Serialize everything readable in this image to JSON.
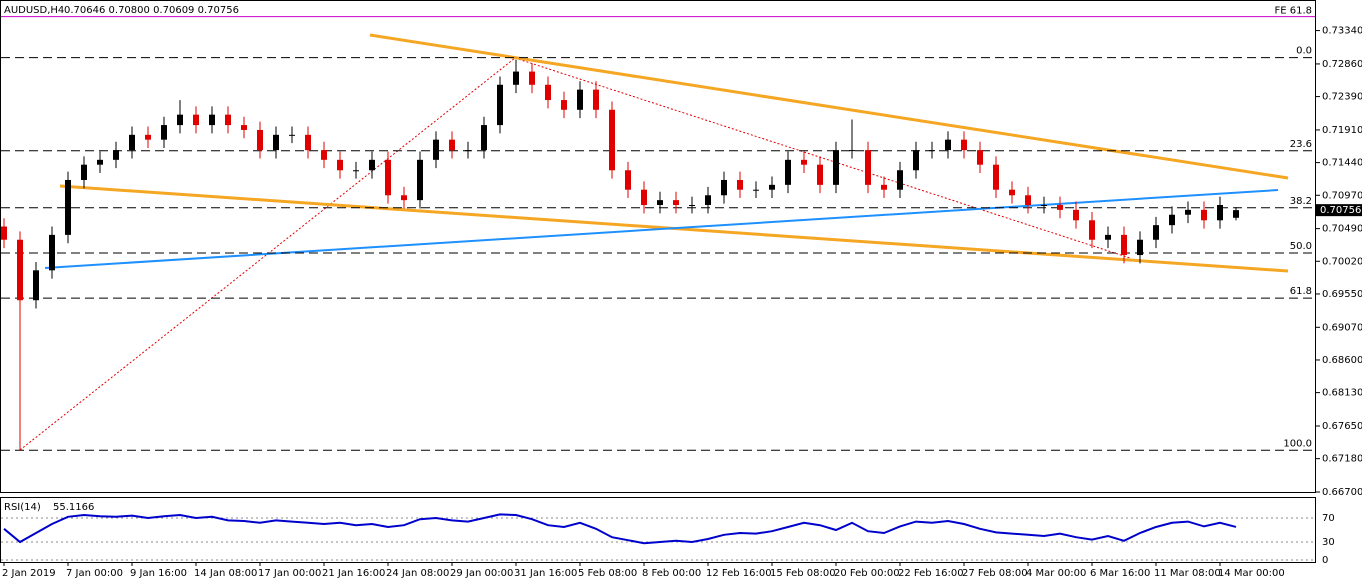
{
  "chart_data": [
    {
      "type": "candlestick",
      "title": "AUDUSD,H4",
      "subtitle": "0.70646 0.70800 0.70609 0.70756",
      "categories": [
        "2 Jan 2019",
        null,
        null,
        null,
        "7 Jan 00:00",
        null,
        null,
        null,
        "9 Jan 16:00",
        null,
        null,
        null,
        "14 Jan 08:00",
        null,
        null,
        null,
        "17 Jan 00:00",
        null,
        null,
        null,
        "21 Jan 16:00",
        null,
        null,
        null,
        "24 Jan 08:00",
        null,
        null,
        null,
        "29 Jan 00:00",
        null,
        null,
        null,
        "31 Jan 16:00",
        null,
        null,
        null,
        "5 Feb 08:00",
        null,
        null,
        null,
        "8 Feb 00:00",
        null,
        null,
        null,
        "12 Feb 16:00",
        null,
        null,
        null,
        "15 Feb 08:00",
        null,
        null,
        null,
        "20 Feb 00:00",
        null,
        null,
        null,
        "22 Feb 16:00",
        null,
        null,
        null,
        "27 Feb 08:00",
        null,
        null,
        null,
        "4 Mar 00:00",
        null,
        null,
        null,
        "6 Mar 16:00",
        null,
        null,
        null,
        "11 Mar 08:00",
        null,
        null,
        null,
        "14 Mar 00:00",
        null
      ],
      "open": [
        0.7052,
        0.7033,
        0.6946,
        0.6989,
        0.704,
        0.7119,
        0.7141,
        0.7148,
        0.7162,
        0.7184,
        0.7177,
        0.7198,
        0.7213,
        0.7198,
        0.7213,
        0.7198,
        0.7191,
        0.7162,
        0.7184,
        0.7184,
        0.7162,
        0.7148,
        0.7133,
        0.7133,
        0.7148,
        0.7097,
        0.709,
        0.7148,
        0.7177,
        0.7162,
        0.7162,
        0.7198,
        0.7256,
        0.7275,
        0.7256,
        0.7234,
        0.722,
        0.7249,
        0.722,
        0.7133,
        0.7105,
        0.7083,
        0.709,
        0.7083,
        0.7083,
        0.7097,
        0.7119,
        0.7105,
        0.7105,
        0.7112,
        0.7148,
        0.7141,
        0.7112,
        0.7162,
        0.7162,
        0.7112,
        0.7105,
        0.7133,
        0.7162,
        0.7162,
        0.7177,
        0.7162,
        0.7141,
        0.7105,
        0.7097,
        0.7083,
        0.7083,
        0.7076,
        0.7061,
        0.7033,
        0.704,
        0.7011,
        0.7033,
        0.7054,
        0.7069,
        0.7076,
        0.7061,
        0.70646
      ],
      "high": [
        0.7064,
        0.7045,
        0.7001,
        0.7052,
        0.7131,
        0.7153,
        0.716,
        0.7174,
        0.7196,
        0.7196,
        0.721,
        0.7234,
        0.7225,
        0.7225,
        0.7225,
        0.721,
        0.7203,
        0.7196,
        0.7196,
        0.7196,
        0.7174,
        0.716,
        0.7145,
        0.716,
        0.716,
        0.7109,
        0.716,
        0.7189,
        0.7189,
        0.7174,
        0.721,
        0.7268,
        0.7292,
        0.7287,
        0.7268,
        0.7246,
        0.7261,
        0.7261,
        0.7232,
        0.7145,
        0.7117,
        0.7102,
        0.7102,
        0.7095,
        0.7109,
        0.7131,
        0.7131,
        0.7117,
        0.7124,
        0.716,
        0.716,
        0.7153,
        0.7174,
        0.7206,
        0.7174,
        0.7124,
        0.7145,
        0.7174,
        0.7174,
        0.7189,
        0.7189,
        0.7174,
        0.7153,
        0.7117,
        0.7109,
        0.7095,
        0.7095,
        0.7088,
        0.7073,
        0.7052,
        0.7052,
        0.7045,
        0.7066,
        0.7081,
        0.7088,
        0.7088,
        0.7095,
        0.708
      ],
      "low": [
        0.7021,
        0.673,
        0.6934,
        0.6977,
        0.7028,
        0.7107,
        0.7129,
        0.7136,
        0.715,
        0.7165,
        0.7165,
        0.7186,
        0.7186,
        0.7186,
        0.7186,
        0.7179,
        0.715,
        0.715,
        0.7172,
        0.715,
        0.7136,
        0.7121,
        0.7121,
        0.7121,
        0.7085,
        0.7078,
        0.7078,
        0.7136,
        0.715,
        0.715,
        0.715,
        0.7186,
        0.7244,
        0.7244,
        0.7222,
        0.7208,
        0.7208,
        0.7208,
        0.7121,
        0.7093,
        0.7071,
        0.7071,
        0.7071,
        0.7071,
        0.7071,
        0.7085,
        0.7093,
        0.7093,
        0.7093,
        0.71,
        0.7129,
        0.71,
        0.71,
        0.715,
        0.71,
        0.7093,
        0.7093,
        0.7121,
        0.715,
        0.715,
        0.715,
        0.7129,
        0.7093,
        0.7085,
        0.7071,
        0.7071,
        0.7064,
        0.7049,
        0.7021,
        0.7021,
        0.6999,
        0.6999,
        0.7021,
        0.7042,
        0.7057,
        0.7049,
        0.7049,
        0.70609
      ],
      "close": [
        0.7033,
        0.6946,
        0.6989,
        0.704,
        0.7119,
        0.7141,
        0.7148,
        0.7162,
        0.7184,
        0.7177,
        0.7198,
        0.7213,
        0.7198,
        0.7213,
        0.7198,
        0.7191,
        0.7162,
        0.7184,
        0.7184,
        0.7162,
        0.7148,
        0.7133,
        0.7133,
        0.7148,
        0.7097,
        0.709,
        0.7148,
        0.7177,
        0.7162,
        0.7162,
        0.7198,
        0.7256,
        0.7275,
        0.7256,
        0.7234,
        0.722,
        0.7249,
        0.722,
        0.7133,
        0.7105,
        0.7083,
        0.709,
        0.7083,
        0.7083,
        0.7097,
        0.7119,
        0.7105,
        0.7105,
        0.7112,
        0.7148,
        0.7141,
        0.7112,
        0.7162,
        0.7162,
        0.7112,
        0.7105,
        0.7133,
        0.7162,
        0.7162,
        0.7177,
        0.7162,
        0.7141,
        0.7105,
        0.7097,
        0.7083,
        0.7083,
        0.7076,
        0.7061,
        0.7033,
        0.704,
        0.7011,
        0.7033,
        0.7054,
        0.7069,
        0.7076,
        0.7061,
        0.7083,
        0.70756
      ],
      "up_color": "#000000",
      "down_color": "#e00000",
      "ylim": [
        0.667,
        0.7378
      ],
      "yticks": [
        {
          "value": 0.7334,
          "label": "0.73340"
        },
        {
          "value": 0.7286,
          "label": "0.72860"
        },
        {
          "value": 0.7239,
          "label": "0.72390"
        },
        {
          "value": 0.7191,
          "label": "0.71910"
        },
        {
          "value": 0.7144,
          "label": "0.71440"
        },
        {
          "value": 0.7097,
          "label": "0.70970"
        },
        {
          "value": 0.7049,
          "label": "0.70490"
        },
        {
          "value": 0.7002,
          "label": "0.70020"
        },
        {
          "value": 0.6955,
          "label": "0.69550"
        },
        {
          "value": 0.6907,
          "label": "0.69070"
        },
        {
          "value": 0.686,
          "label": "0.68600"
        },
        {
          "value": 0.6813,
          "label": "0.68130"
        },
        {
          "value": 0.6765,
          "label": "0.67650"
        },
        {
          "value": 0.6718,
          "label": "0.67180"
        },
        {
          "value": 0.667,
          "label": "0.66700"
        }
      ],
      "fib_levels": [
        {
          "label": "0.0",
          "value": 0.7295
        },
        {
          "label": "23.6",
          "value": 0.7161
        },
        {
          "label": "38.2",
          "value": 0.7079
        },
        {
          "label": "50.0",
          "value": 0.7014
        },
        {
          "label": "61.8",
          "value": 0.6949
        },
        {
          "label": "100.0",
          "value": 0.673
        }
      ],
      "fe_level": {
        "label": "FE 61.8",
        "value": 0.7354,
        "color": "#cc00cc"
      }
    },
    {
      "type": "line",
      "title": "RSI(14)",
      "color": "#0000cc",
      "values": [
        52,
        30,
        45,
        60,
        72,
        75,
        73,
        72,
        74,
        70,
        73,
        75,
        70,
        72,
        66,
        65,
        62,
        66,
        64,
        62,
        60,
        62,
        58,
        60,
        55,
        58,
        68,
        70,
        66,
        64,
        70,
        76,
        75,
        68,
        58,
        55,
        62,
        52,
        38,
        33,
        28,
        30,
        32,
        30,
        35,
        42,
        45,
        44,
        48,
        55,
        62,
        58,
        50,
        62,
        48,
        45,
        56,
        64,
        62,
        65,
        60,
        52,
        46,
        44,
        42,
        40,
        44,
        38,
        34,
        40,
        32,
        45,
        55,
        62,
        64,
        56,
        62,
        55.1166
      ],
      "ylim": [
        0,
        100
      ],
      "yticks": [
        70,
        30,
        0
      ]
    }
  ]
}
